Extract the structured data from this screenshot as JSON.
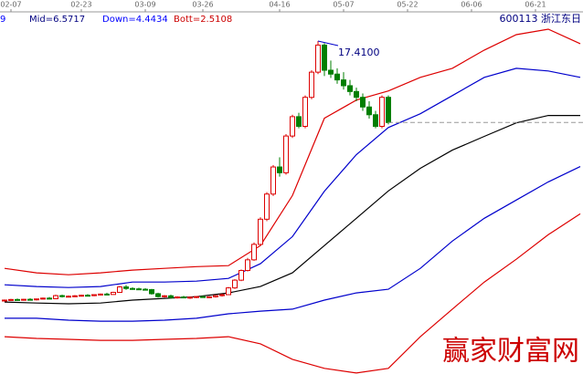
{
  "chart_data": {
    "type": "candlestick",
    "indicator_labels": [
      {
        "text": "9",
        "color": "#0000ff"
      },
      {
        "text": "Mid=6.5717",
        "color": "#000080"
      },
      {
        "text": "Down=4.4434",
        "color": "#0000ff"
      },
      {
        "text": "Bott=2.5108",
        "color": "#cc0000"
      }
    ],
    "stock_label": "600113 浙江东日",
    "annotation": {
      "text": "17.4100",
      "value": 17.41,
      "x": 49
    },
    "watermark": "赢家财富网",
    "xlim": [
      -0.714,
      90.43
    ],
    "ylim": [
      0.2,
      19.53
    ],
    "xticks": [
      {
        "value": 1,
        "label": "02-07"
      },
      {
        "value": 12,
        "label": "02-23"
      },
      {
        "value": 22,
        "label": "03-09"
      },
      {
        "value": 31,
        "label": "03-26"
      },
      {
        "value": 43,
        "label": "04-16"
      },
      {
        "value": 53,
        "label": "05-07"
      },
      {
        "value": 63,
        "label": "05-22"
      },
      {
        "value": 73,
        "label": "06-06"
      },
      {
        "value": 83,
        "label": "06-21"
      }
    ],
    "up_color": "#dd0000",
    "down_color": "#007f00",
    "candles": {
      "x": [
        0,
        1,
        2,
        3,
        4,
        5,
        6,
        7,
        8,
        9,
        10,
        11,
        12,
        13,
        14,
        15,
        16,
        17,
        18,
        19,
        20,
        21,
        22,
        23,
        24,
        25,
        26,
        27,
        28,
        29,
        30,
        31,
        32,
        33,
        34,
        35,
        36,
        37,
        38,
        39,
        40,
        41,
        42,
        43,
        44,
        45,
        46,
        47,
        48,
        49,
        50,
        51,
        52,
        53,
        54,
        55,
        56,
        57,
        58,
        59,
        60
      ],
      "open": [
        4.0,
        4.02,
        4.05,
        4.03,
        4.06,
        4.04,
        4.08,
        4.12,
        4.09,
        4.25,
        4.2,
        4.22,
        4.24,
        4.27,
        4.25,
        4.3,
        4.33,
        4.31,
        4.42,
        4.7,
        4.62,
        4.6,
        4.58,
        4.56,
        4.35,
        4.2,
        4.24,
        4.15,
        4.18,
        4.14,
        4.17,
        4.2,
        4.16,
        4.19,
        4.25,
        4.3,
        4.65,
        5.05,
        5.55,
        6.1,
        6.9,
        8.2,
        9.5,
        10.9,
        10.6,
        12.5,
        13.5,
        13.0,
        14.5,
        15.8,
        17.2,
        15.9,
        15.7,
        15.4,
        15.1,
        14.8,
        14.5,
        14.0,
        13.6,
        13.0,
        14.5
      ],
      "high": [
        4.05,
        4.08,
        4.1,
        4.08,
        4.12,
        4.09,
        4.15,
        4.18,
        4.3,
        4.3,
        4.26,
        4.28,
        4.3,
        4.33,
        4.32,
        4.36,
        4.4,
        4.45,
        4.75,
        4.8,
        4.68,
        4.66,
        4.64,
        4.6,
        4.4,
        4.28,
        4.3,
        4.22,
        4.24,
        4.2,
        4.23,
        4.26,
        4.22,
        4.28,
        4.35,
        4.7,
        5.1,
        5.6,
        6.2,
        7.0,
        8.3,
        9.6,
        11.0,
        11.4,
        12.6,
        13.6,
        13.7,
        14.6,
        15.9,
        17.41,
        17.3,
        16.4,
        16.0,
        15.8,
        15.4,
        15.0,
        14.7,
        14.3,
        13.8,
        14.6,
        14.6
      ],
      "low": [
        3.95,
        3.98,
        4.0,
        3.99,
        4.02,
        4.0,
        4.05,
        4.06,
        4.08,
        4.15,
        4.16,
        4.18,
        4.2,
        4.22,
        4.22,
        4.26,
        4.28,
        4.3,
        4.4,
        4.55,
        4.55,
        4.55,
        4.52,
        4.3,
        4.15,
        4.15,
        4.1,
        4.1,
        4.12,
        4.08,
        4.12,
        4.14,
        4.12,
        4.15,
        4.2,
        4.28,
        4.6,
        5.0,
        5.5,
        6.05,
        6.85,
        8.1,
        9.4,
        10.4,
        10.5,
        12.4,
        12.9,
        12.9,
        14.4,
        15.7,
        15.6,
        15.5,
        15.2,
        14.9,
        14.6,
        14.3,
        13.8,
        13.4,
        12.9,
        12.9,
        13.1
      ],
      "close": [
        4.02,
        4.05,
        4.03,
        4.06,
        4.04,
        4.08,
        4.12,
        4.09,
        4.25,
        4.2,
        4.22,
        4.24,
        4.27,
        4.25,
        4.3,
        4.33,
        4.31,
        4.42,
        4.7,
        4.62,
        4.6,
        4.58,
        4.56,
        4.35,
        4.2,
        4.24,
        4.15,
        4.18,
        4.14,
        4.17,
        4.2,
        4.16,
        4.19,
        4.25,
        4.3,
        4.65,
        5.05,
        5.55,
        6.1,
        6.9,
        8.2,
        9.5,
        10.9,
        10.6,
        12.5,
        13.5,
        13.0,
        14.5,
        15.8,
        17.2,
        15.9,
        15.7,
        15.4,
        15.1,
        14.8,
        14.5,
        14.0,
        13.6,
        13.0,
        14.5,
        13.2
      ]
    },
    "reference_line": {
      "value": 13.2,
      "x": 60,
      "color": "#999999"
    },
    "line_x": [
      0,
      5,
      10,
      15,
      20,
      25,
      30,
      35,
      40,
      45,
      50,
      55,
      60,
      65,
      70,
      75,
      80,
      85,
      90
    ],
    "series": [
      {
        "color": "#dd0000",
        "values": [
          5.66,
          5.43,
          5.33,
          5.43,
          5.57,
          5.66,
          5.75,
          5.8,
          6.84,
          9.42,
          13.42,
          14.36,
          14.83,
          15.53,
          16.0,
          16.94,
          17.74,
          18.02,
          17.27
        ]
      },
      {
        "color": "#0000cc",
        "values": [
          4.81,
          4.72,
          4.67,
          4.72,
          4.95,
          4.95,
          5.0,
          5.14,
          5.9,
          7.3,
          9.65,
          11.54,
          12.94,
          13.65,
          14.59,
          15.53,
          16.0,
          15.86,
          15.53
        ]
      },
      {
        "color": "#000000",
        "values": [
          3.92,
          3.87,
          3.83,
          3.87,
          4.02,
          4.11,
          4.2,
          4.39,
          4.72,
          5.43,
          6.84,
          8.25,
          9.66,
          10.83,
          11.77,
          12.48,
          13.18,
          13.56,
          13.56
        ]
      },
      {
        "color": "#0000cc",
        "values": [
          3.08,
          3.08,
          2.98,
          2.93,
          2.93,
          2.98,
          3.08,
          3.31,
          3.45,
          3.55,
          4.02,
          4.39,
          4.58,
          5.66,
          7.07,
          8.25,
          9.19,
          10.13,
          10.92
        ]
      },
      {
        "color": "#dd0000",
        "values": [
          2.13,
          2.04,
          1.99,
          1.94,
          1.94,
          1.99,
          2.04,
          2.13,
          1.76,
          0.96,
          0.49,
          0.25,
          0.49,
          2.13,
          3.55,
          4.95,
          6.13,
          7.4,
          8.48
        ]
      }
    ]
  }
}
